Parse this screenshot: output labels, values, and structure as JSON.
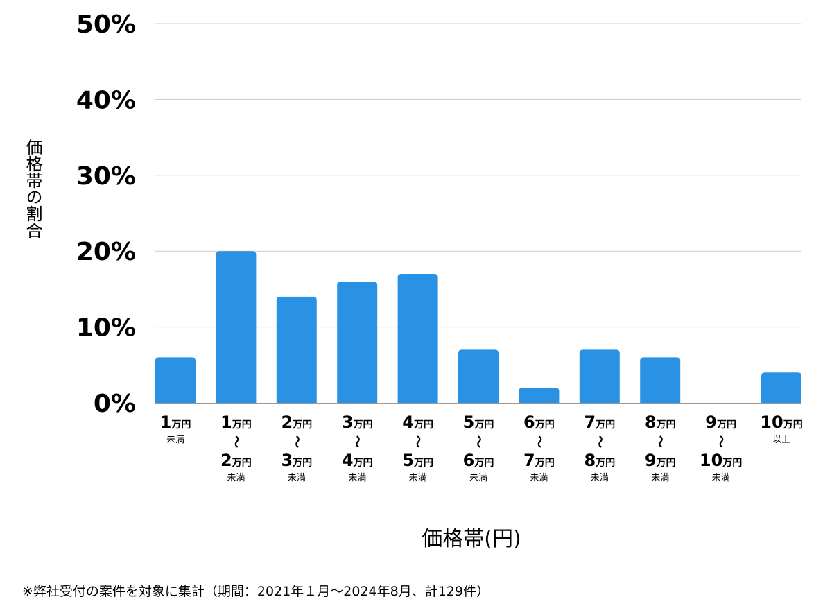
{
  "chart_data": {
    "type": "bar",
    "title": "",
    "xlabel": "価格帯(円)",
    "ylabel": "価格帯の割合",
    "ylim": [
      0,
      50
    ],
    "yticks": [
      "0%",
      "10%",
      "20%",
      "30%",
      "40%",
      "50%"
    ],
    "grid": true,
    "bar_color": "#2a92e4",
    "categories": [
      {
        "lines": [
          [
            "1",
            "万円"
          ],
          [
            "",
            "未満"
          ]
        ]
      },
      {
        "lines": [
          [
            "1",
            "万円"
          ],
          [
            "",
            "〜"
          ],
          [
            "2",
            "万円"
          ],
          [
            "",
            "未満"
          ]
        ]
      },
      {
        "lines": [
          [
            "2",
            "万円"
          ],
          [
            "",
            "〜"
          ],
          [
            "3",
            "万円"
          ],
          [
            "",
            "未満"
          ]
        ]
      },
      {
        "lines": [
          [
            "3",
            "万円"
          ],
          [
            "",
            "〜"
          ],
          [
            "4",
            "万円"
          ],
          [
            "",
            "未満"
          ]
        ]
      },
      {
        "lines": [
          [
            "4",
            "万円"
          ],
          [
            "",
            "〜"
          ],
          [
            "5",
            "万円"
          ],
          [
            "",
            "未満"
          ]
        ]
      },
      {
        "lines": [
          [
            "5",
            "万円"
          ],
          [
            "",
            "〜"
          ],
          [
            "6",
            "万円"
          ],
          [
            "",
            "未満"
          ]
        ]
      },
      {
        "lines": [
          [
            "6",
            "万円"
          ],
          [
            "",
            "〜"
          ],
          [
            "7",
            "万円"
          ],
          [
            "",
            "未満"
          ]
        ]
      },
      {
        "lines": [
          [
            "7",
            "万円"
          ],
          [
            "",
            "〜"
          ],
          [
            "8",
            "万円"
          ],
          [
            "",
            "未満"
          ]
        ]
      },
      {
        "lines": [
          [
            "8",
            "万円"
          ],
          [
            "",
            "〜"
          ],
          [
            "9",
            "万円"
          ],
          [
            "",
            "未満"
          ]
        ]
      },
      {
        "lines": [
          [
            "9",
            "万円"
          ],
          [
            "",
            "〜"
          ],
          [
            "10",
            "万円"
          ],
          [
            "",
            "未満"
          ]
        ]
      },
      {
        "lines": [
          [
            "10",
            "万円"
          ],
          [
            "",
            "以上"
          ]
        ]
      }
    ],
    "values": [
      6,
      20,
      14,
      16,
      17,
      7,
      2,
      7,
      6,
      0,
      4
    ]
  },
  "footnote": "※弊社受付の案件を対象に集計（期間：2021年１月〜2024年8月、計129件）"
}
